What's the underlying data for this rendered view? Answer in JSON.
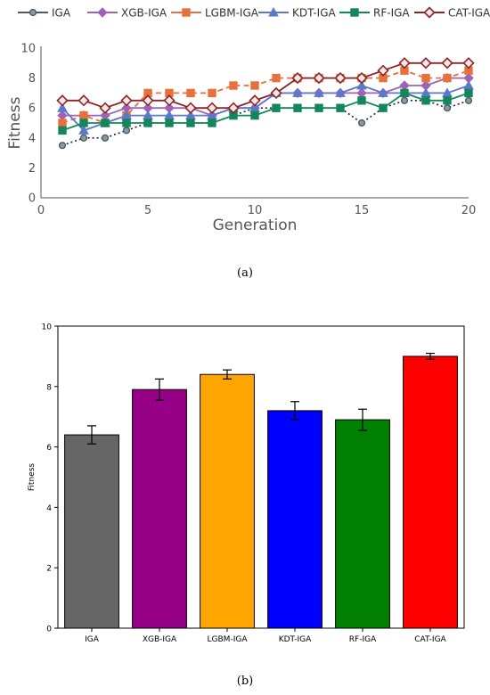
{
  "panel_a_label": "(a)",
  "panel_b_label": "(b)",
  "chart_data": [
    {
      "type": "line",
      "xlabel": "Generation",
      "ylabel": "Fitness",
      "xlim": [
        0,
        20
      ],
      "ylim": [
        0,
        10
      ],
      "xticks": [
        0,
        5,
        10,
        15,
        20
      ],
      "yticks": [
        0,
        2,
        4,
        6,
        8,
        10
      ],
      "grid": false,
      "legend_position": "top",
      "x": [
        1,
        2,
        3,
        4,
        5,
        6,
        7,
        8,
        9,
        10,
        11,
        12,
        13,
        14,
        15,
        16,
        17,
        18,
        19,
        20
      ],
      "series": [
        {
          "name": "IGA",
          "color": "#4d5b66",
          "marker": "circle",
          "line": "dotted",
          "values": [
            3.5,
            4.0,
            4.0,
            4.5,
            5.0,
            5.0,
            5.0,
            5.0,
            5.5,
            6.0,
            6.0,
            6.0,
            6.0,
            6.0,
            5.0,
            6.0,
            6.5,
            6.5,
            6.0,
            6.5
          ]
        },
        {
          "name": "XGB-IGA",
          "color": "#a062b5",
          "marker": "diamond",
          "line": "solid",
          "values": [
            5.5,
            5.5,
            5.5,
            6.0,
            6.0,
            6.0,
            6.0,
            5.5,
            6.0,
            6.0,
            7.0,
            7.0,
            7.0,
            7.0,
            7.0,
            7.0,
            7.5,
            7.5,
            8.0,
            8.0
          ]
        },
        {
          "name": "LGBM-IGA",
          "color": "#e8703a",
          "marker": "square",
          "line": "dashed",
          "values": [
            5.0,
            5.5,
            5.0,
            5.5,
            7.0,
            7.0,
            7.0,
            7.0,
            7.5,
            7.5,
            8.0,
            8.0,
            8.0,
            8.0,
            8.0,
            8.0,
            8.5,
            8.0,
            8.0,
            8.5
          ]
        },
        {
          "name": "KDT-IGA",
          "color": "#5b78c9",
          "marker": "triangle",
          "line": "solid",
          "values": [
            6.0,
            4.5,
            5.0,
            5.5,
            5.5,
            5.5,
            5.5,
            5.5,
            6.0,
            6.0,
            7.0,
            7.0,
            7.0,
            7.0,
            7.5,
            7.0,
            7.0,
            7.0,
            7.0,
            7.5
          ]
        },
        {
          "name": "RF-IGA",
          "color": "#13875b",
          "marker": "square",
          "line": "solid",
          "values": [
            4.5,
            5.0,
            5.0,
            5.0,
            5.0,
            5.0,
            5.0,
            5.0,
            5.5,
            5.5,
            6.0,
            6.0,
            6.0,
            6.0,
            6.5,
            6.0,
            7.0,
            6.5,
            6.5,
            7.0
          ]
        },
        {
          "name": "CAT-IGA",
          "color": "#8b2328",
          "marker": "diamond-open",
          "line": "solid",
          "values": [
            6.5,
            6.5,
            6.0,
            6.5,
            6.5,
            6.5,
            6.0,
            6.0,
            6.0,
            6.5,
            7.0,
            8.0,
            8.0,
            8.0,
            8.0,
            8.5,
            9.0,
            9.0,
            9.0,
            9.0
          ]
        }
      ]
    },
    {
      "type": "bar",
      "ylabel": "Fitness",
      "xlabel": "",
      "ylim": [
        0,
        10
      ],
      "yticks": [
        0,
        2,
        4,
        6,
        8,
        10
      ],
      "grid": false,
      "categories": [
        "IGA",
        "XGB-IGA",
        "LGBM-IGA",
        "KDT-IGA",
        "RF-IGA",
        "CAT-IGA"
      ],
      "values": [
        6.4,
        7.9,
        8.4,
        7.2,
        6.9,
        9.0
      ],
      "errors": [
        0.3,
        0.35,
        0.15,
        0.3,
        0.35,
        0.1
      ],
      "colors": [
        "#666666",
        "#950086",
        "#ffa500",
        "#0000ff",
        "#008000",
        "#ff0000"
      ]
    }
  ]
}
